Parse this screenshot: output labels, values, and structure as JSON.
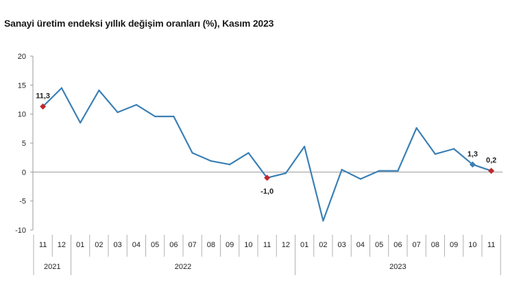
{
  "title": "Sanayi üretim endeksi yıllık değişim oranları (%), Kasım 2023",
  "colors": {
    "line": "#3a7fb5",
    "highlight_marker": "#c0282d",
    "blue_marker": "#3a7fb5",
    "axis": "#999999"
  },
  "chart_data": {
    "type": "line",
    "title": "Sanayi üretim endeksi yıllık değişim oranları (%), Kasım 2023",
    "xlabel": "",
    "ylabel": "",
    "ylim": [
      -10,
      20
    ],
    "yticks": [
      "20",
      "15",
      "10",
      "5",
      "0",
      "-5",
      "-10"
    ],
    "grid": false,
    "x": [
      "11",
      "12",
      "01",
      "02",
      "03",
      "04",
      "05",
      "06",
      "07",
      "08",
      "09",
      "10",
      "11",
      "12",
      "01",
      "02",
      "03",
      "04",
      "05",
      "06",
      "07",
      "08",
      "09",
      "10",
      "11"
    ],
    "years": [
      {
        "label": "2021",
        "span": 2
      },
      {
        "label": "2022",
        "span": 12
      },
      {
        "label": "2023",
        "span": 11
      }
    ],
    "series": [
      {
        "values": [
          11.3,
          14.5,
          8.5,
          14.1,
          10.3,
          11.6,
          9.6,
          9.6,
          3.3,
          1.9,
          1.3,
          3.3,
          -1.0,
          -0.2,
          4.4,
          -8.4,
          0.4,
          -1.2,
          0.2,
          0.2,
          7.6,
          3.1,
          4.0,
          1.3,
          0.2
        ]
      }
    ],
    "annotations": [
      {
        "index": 0,
        "text": "11,3",
        "marker": "red",
        "pos": "above"
      },
      {
        "index": 12,
        "text": "-1,0",
        "marker": "red",
        "pos": "below"
      },
      {
        "index": 23,
        "text": "1,3",
        "marker": "blue",
        "pos": "above"
      },
      {
        "index": 24,
        "text": "0,2",
        "marker": "red",
        "pos": "above"
      }
    ]
  }
}
